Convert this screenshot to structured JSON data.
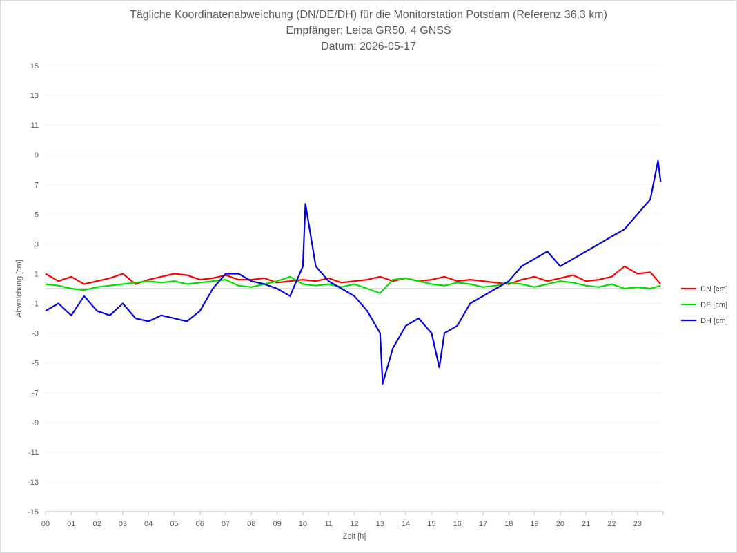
{
  "chart_data": {
    "type": "line",
    "title": "Tägliche Koordinatenabweichung (DN/DE/DH) für die Monitorstation Potsdam (Referenz 36,3 km)",
    "subtitle1": "Empfänger: Leica GR50, 4 GNSS",
    "subtitle2": "Datum: 2026-05-17",
    "xlabel": "Zeit [h]",
    "ylabel": "Abweichung [cm]",
    "xlim": [
      0,
      24
    ],
    "ylim": [
      -15,
      15
    ],
    "x_ticks": [
      "00",
      "01",
      "02",
      "03",
      "04",
      "05",
      "06",
      "07",
      "08",
      "09",
      "10",
      "11",
      "12",
      "13",
      "14",
      "15",
      "16",
      "17",
      "18",
      "19",
      "20",
      "21",
      "22",
      "23"
    ],
    "y_ticks": [
      15,
      13,
      11,
      9,
      7,
      5,
      3,
      1,
      -1,
      -3,
      -5,
      -7,
      -9,
      -11,
      -13,
      -15
    ],
    "grid": "horizontal-dotted",
    "legend_position": "right",
    "series": [
      {
        "name": "DN [cm]",
        "color": "#ff0000",
        "x": [
          0.0,
          0.5,
          1.0,
          1.5,
          2.0,
          2.5,
          3.0,
          3.5,
          4.0,
          4.5,
          5.0,
          5.5,
          6.0,
          6.5,
          7.0,
          7.5,
          8.0,
          8.5,
          9.0,
          9.5,
          10.0,
          10.5,
          11.0,
          11.5,
          12.0,
          12.5,
          13.0,
          13.5,
          14.0,
          14.5,
          15.0,
          15.5,
          16.0,
          16.5,
          17.0,
          17.5,
          18.0,
          18.5,
          19.0,
          19.5,
          20.0,
          20.5,
          21.0,
          21.5,
          22.0,
          22.5,
          23.0,
          23.5,
          23.9
        ],
        "values": [
          1.0,
          0.5,
          0.8,
          0.3,
          0.5,
          0.7,
          1.0,
          0.3,
          0.6,
          0.8,
          1.0,
          0.9,
          0.6,
          0.7,
          0.9,
          0.6,
          0.6,
          0.7,
          0.4,
          0.5,
          0.6,
          0.5,
          0.7,
          0.4,
          0.5,
          0.6,
          0.8,
          0.5,
          0.7,
          0.5,
          0.6,
          0.8,
          0.5,
          0.6,
          0.5,
          0.4,
          0.3,
          0.6,
          0.8,
          0.5,
          0.7,
          0.9,
          0.5,
          0.6,
          0.8,
          1.5,
          1.0,
          1.1,
          0.3
        ]
      },
      {
        "name": "DE [cm]",
        "color": "#00e000",
        "x": [
          0.0,
          0.5,
          1.0,
          1.5,
          2.0,
          2.5,
          3.0,
          3.5,
          4.0,
          4.5,
          5.0,
          5.5,
          6.0,
          6.5,
          7.0,
          7.5,
          8.0,
          8.5,
          9.0,
          9.5,
          10.0,
          10.5,
          11.0,
          11.5,
          12.0,
          12.5,
          13.0,
          13.5,
          14.0,
          14.5,
          15.0,
          15.5,
          16.0,
          16.5,
          17.0,
          17.5,
          18.0,
          18.5,
          19.0,
          19.5,
          20.0,
          20.5,
          21.0,
          21.5,
          22.0,
          22.5,
          23.0,
          23.5,
          23.9
        ],
        "values": [
          0.3,
          0.2,
          0.0,
          -0.1,
          0.1,
          0.2,
          0.3,
          0.4,
          0.5,
          0.4,
          0.5,
          0.3,
          0.4,
          0.5,
          0.6,
          0.2,
          0.1,
          0.3,
          0.5,
          0.8,
          0.3,
          0.2,
          0.3,
          0.1,
          0.3,
          0.0,
          -0.3,
          0.6,
          0.7,
          0.5,
          0.3,
          0.2,
          0.4,
          0.3,
          0.1,
          0.2,
          0.4,
          0.3,
          0.1,
          0.3,
          0.5,
          0.4,
          0.2,
          0.1,
          0.3,
          0.0,
          0.1,
          0.0,
          0.2
        ]
      },
      {
        "name": "DH [cm]",
        "color": "#0000e0",
        "x": [
          0.0,
          0.5,
          1.0,
          1.5,
          2.0,
          2.5,
          3.0,
          3.5,
          4.0,
          4.5,
          5.0,
          5.5,
          6.0,
          6.5,
          7.0,
          7.5,
          8.0,
          8.5,
          9.0,
          9.5,
          10.0,
          10.1,
          10.5,
          11.0,
          11.5,
          12.0,
          12.5,
          13.0,
          13.1,
          13.5,
          14.0,
          14.5,
          15.0,
          15.3,
          15.5,
          16.0,
          16.5,
          17.0,
          17.5,
          18.0,
          18.5,
          19.0,
          19.5,
          20.0,
          20.5,
          21.0,
          21.5,
          22.0,
          22.5,
          23.0,
          23.5,
          23.8,
          23.9
        ],
        "values": [
          -1.5,
          -1.0,
          -1.8,
          -0.5,
          -1.5,
          -1.8,
          -1.0,
          -2.0,
          -2.2,
          -1.8,
          -2.0,
          -2.2,
          -1.5,
          0.0,
          1.0,
          1.0,
          0.5,
          0.3,
          0.0,
          -0.5,
          1.5,
          5.7,
          1.5,
          0.5,
          0.0,
          -0.5,
          -1.5,
          -3.0,
          -6.4,
          -4.0,
          -2.5,
          -2.0,
          -3.0,
          -5.3,
          -3.0,
          -2.5,
          -1.0,
          -0.5,
          0.0,
          0.5,
          1.5,
          2.0,
          2.5,
          1.5,
          2.0,
          2.5,
          3.0,
          3.5,
          4.0,
          5.0,
          6.0,
          8.6,
          7.2
        ]
      }
    ]
  }
}
